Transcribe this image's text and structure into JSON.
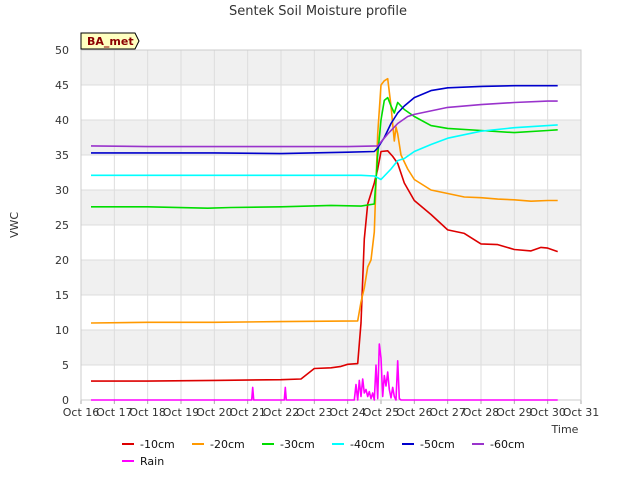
{
  "chart_data": {
    "type": "line",
    "title": "Sentek Soil Moisture profile",
    "xlabel": "Time",
    "ylabel": "VWC",
    "badge": "BA_met",
    "ylim": [
      0,
      50
    ],
    "y_ticks": [
      0,
      5,
      10,
      15,
      20,
      25,
      30,
      35,
      40,
      45,
      50
    ],
    "xlim": [
      16,
      31
    ],
    "x_ticks": [
      16,
      17,
      18,
      19,
      20,
      21,
      22,
      23,
      24,
      25,
      26,
      27,
      28,
      29,
      30,
      31
    ],
    "x_tick_labels": [
      "Oct 16",
      "Oct 17",
      "Oct 18",
      "Oct 19",
      "Oct 20",
      "Oct 21",
      "Oct 22",
      "Oct 23",
      "Oct 24",
      "Oct 25",
      "Oct 26",
      "Oct 27",
      "Oct 28",
      "Oct 29",
      "Oct 30",
      "Oct 31"
    ],
    "grid": true,
    "legend_position": "bottom",
    "series": [
      {
        "name": "-10cm",
        "color": "#dd0000",
        "x": [
          16.3,
          18,
          20,
          22,
          22.6,
          23,
          23.5,
          23.8,
          24.0,
          24.3,
          24.4,
          24.5,
          24.6,
          24.8,
          24.9,
          25.0,
          25.2,
          25.35,
          25.5,
          25.7,
          26.0,
          26.5,
          27.0,
          27.5,
          28.0,
          28.5,
          29.0,
          29.5,
          29.8,
          30.0,
          30.3
        ],
        "values": [
          2.7,
          2.7,
          2.8,
          2.9,
          3.0,
          4.5,
          4.6,
          4.8,
          5.1,
          5.2,
          11,
          23,
          28,
          31,
          33,
          35.5,
          35.6,
          34.8,
          33.8,
          31,
          28.5,
          26.5,
          24.3,
          23.8,
          22.3,
          22.2,
          21.5,
          21.3,
          21.8,
          21.7,
          21.2
        ]
      },
      {
        "name": "-20cm",
        "color": "#ff9900",
        "x": [
          16.3,
          18,
          20,
          22,
          24.3,
          24.4,
          24.5,
          24.6,
          24.7,
          24.8,
          24.9,
          25.0,
          25.1,
          25.2,
          25.3,
          25.4,
          25.45,
          25.5,
          25.6,
          25.8,
          26.0,
          26.5,
          27.0,
          27.5,
          28.0,
          28.5,
          29.0,
          29.5,
          30.0,
          30.3
        ],
        "values": [
          11.0,
          11.1,
          11.1,
          11.2,
          11.3,
          14,
          16,
          19,
          20,
          24,
          38,
          45.0,
          45.6,
          45.9,
          42,
          37,
          39,
          38,
          35,
          33,
          31.5,
          30,
          29.5,
          29.0,
          28.9,
          28.7,
          28.6,
          28.4,
          28.5,
          28.5
        ]
      },
      {
        "name": "-30cm",
        "color": "#00dd00",
        "x": [
          16.3,
          18,
          19.8,
          20.5,
          22,
          23.5,
          24.4,
          24.8,
          24.9,
          25.0,
          25.1,
          25.2,
          25.3,
          25.4,
          25.5,
          25.7,
          26.0,
          26.5,
          27.0,
          28.0,
          29.0,
          30.0,
          30.3
        ],
        "values": [
          27.6,
          27.6,
          27.4,
          27.5,
          27.6,
          27.8,
          27.7,
          28,
          35,
          40,
          42.8,
          43.2,
          42.0,
          41,
          42.5,
          41.5,
          40.5,
          39.2,
          38.8,
          38.5,
          38.2,
          38.5,
          38.6
        ]
      },
      {
        "name": "-40cm",
        "color": "#00ffff",
        "x": [
          16.3,
          18,
          20,
          22,
          24.4,
          24.8,
          25.0,
          25.3,
          25.5,
          25.7,
          26.0,
          26.5,
          27.0,
          28.0,
          29.0,
          30.0,
          30.3
        ],
        "values": [
          32.1,
          32.1,
          32.1,
          32.1,
          32.1,
          32.0,
          31.5,
          33,
          34.2,
          34.5,
          35.5,
          36.5,
          37.4,
          38.4,
          38.9,
          39.2,
          39.3
        ]
      },
      {
        "name": "-50cm",
        "color": "#0000cc",
        "x": [
          16.3,
          18,
          20,
          22,
          24,
          24.8,
          24.9,
          25.1,
          25.3,
          25.5,
          25.7,
          26.0,
          26.5,
          27.0,
          28.0,
          29.0,
          30.0,
          30.3
        ],
        "values": [
          35.3,
          35.3,
          35.3,
          35.2,
          35.4,
          35.5,
          36.0,
          37.5,
          39.5,
          41,
          42,
          43.2,
          44.2,
          44.6,
          44.8,
          44.9,
          44.9,
          44.9
        ]
      },
      {
        "name": "-60cm",
        "color": "#9933cc",
        "x": [
          16.3,
          18,
          20,
          22,
          24,
          24.9,
          25.2,
          25.5,
          25.8,
          26.0,
          26.5,
          27.0,
          28.0,
          29.0,
          30.0,
          30.3
        ],
        "values": [
          36.3,
          36.2,
          36.2,
          36.2,
          36.2,
          36.3,
          38,
          39.5,
          40.5,
          40.8,
          41.3,
          41.8,
          42.2,
          42.5,
          42.7,
          42.7
        ]
      },
      {
        "name": "Rain",
        "color": "#ff00ff",
        "x": [
          16.3,
          21.12,
          21.15,
          21.18,
          22.1,
          22.13,
          22.16,
          24.2,
          24.25,
          24.3,
          24.35,
          24.4,
          24.45,
          24.5,
          24.55,
          24.6,
          24.65,
          24.7,
          24.75,
          24.8,
          24.85,
          24.9,
          24.95,
          25.0,
          25.05,
          25.1,
          25.15,
          25.2,
          25.25,
          25.3,
          25.35,
          25.4,
          25.45,
          25.5,
          25.55,
          25.6,
          25.65,
          30.3
        ],
        "values": [
          0,
          0,
          1.8,
          0,
          0,
          1.8,
          0,
          0,
          2.2,
          0,
          2.8,
          0.5,
          3.0,
          1.0,
          1.5,
          0.5,
          1.2,
          0.2,
          1.0,
          0,
          5.0,
          0.2,
          8.0,
          6.0,
          0.5,
          3.5,
          2.0,
          4.0,
          1.5,
          0.3,
          1.8,
          0.5,
          0,
          5.6,
          0.2,
          0,
          0,
          0
        ]
      }
    ]
  }
}
